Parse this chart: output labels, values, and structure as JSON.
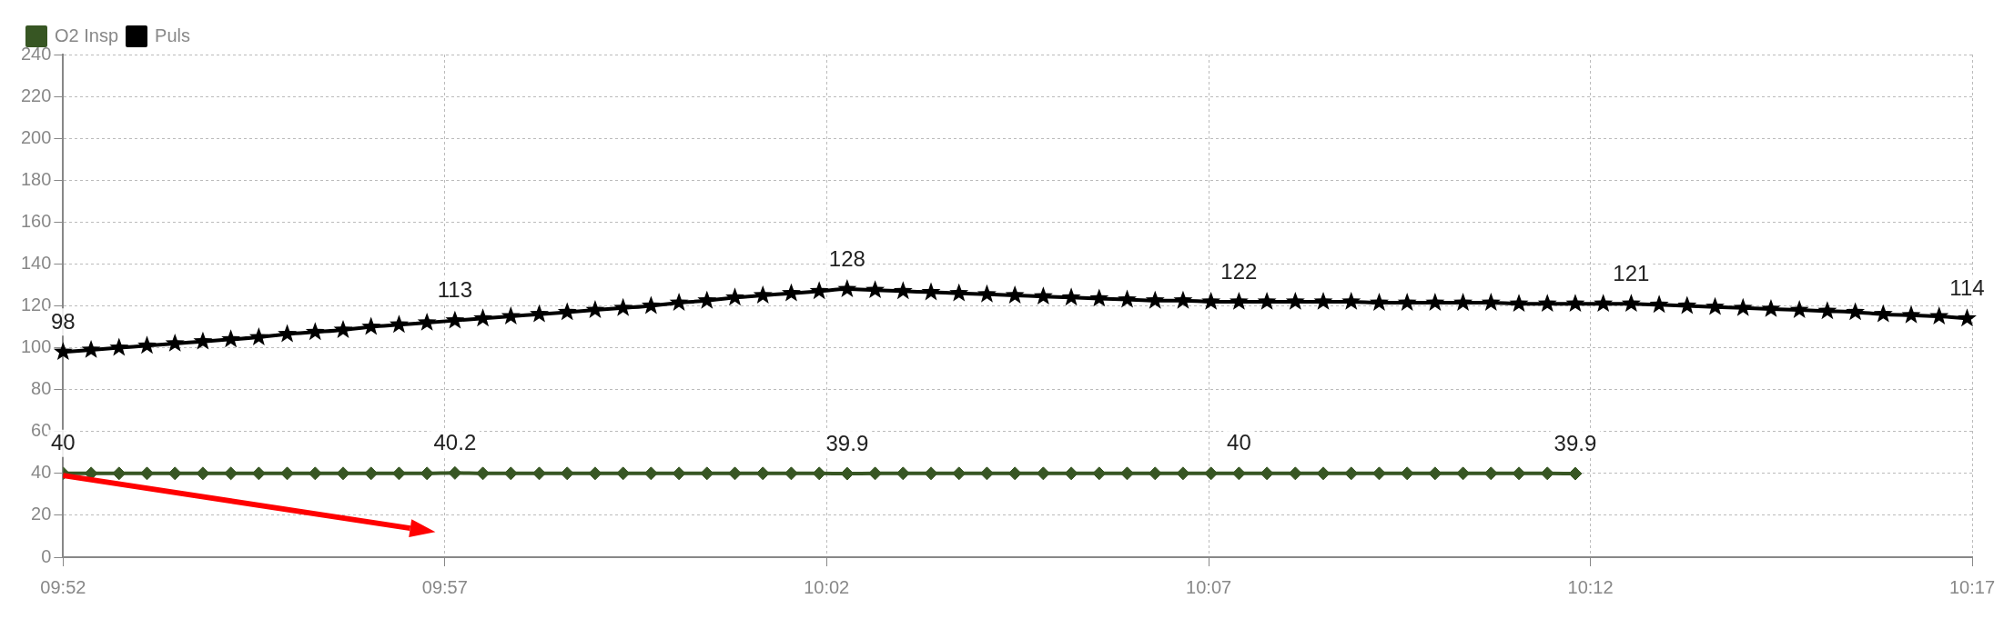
{
  "chart_data": {
    "type": "line",
    "xlim": [
      9.8667,
      10.2833
    ],
    "xticks": [
      {
        "value": 9.8667,
        "label": "09:52"
      },
      {
        "value": 9.95,
        "label": "09:57"
      },
      {
        "value": 10.0333,
        "label": "10:02"
      },
      {
        "value": 10.1167,
        "label": "10:07"
      },
      {
        "value": 10.2,
        "label": "10:12"
      },
      {
        "value": 10.2833,
        "label": "10:17"
      }
    ],
    "ylim": [
      0,
      240
    ],
    "yticks": [
      0,
      20,
      40,
      60,
      80,
      100,
      120,
      140,
      160,
      180,
      200,
      220,
      240
    ],
    "grid": true,
    "legend": "top left",
    "line_style": "solid",
    "series": [
      {
        "name": "O2 Insp",
        "color": "#375623",
        "marker": "diamond",
        "x": [
          9.8667,
          9.8728,
          9.8789,
          9.885,
          9.8911,
          9.8972,
          9.9033,
          9.9094,
          9.9156,
          9.9217,
          9.9278,
          9.9339,
          9.94,
          9.9461,
          9.9522,
          9.9583,
          9.9644,
          9.9706,
          9.9767,
          9.9828,
          9.9889,
          9.995,
          10.0011,
          10.0072,
          10.0133,
          10.0194,
          10.0256,
          10.0317,
          10.0378,
          10.0439,
          10.05,
          10.0561,
          10.0622,
          10.0683,
          10.0744,
          10.0806,
          10.0867,
          10.0928,
          10.0989,
          10.105,
          10.1111,
          10.1172,
          10.1233,
          10.1294,
          10.1356,
          10.1417,
          10.1478,
          10.1539,
          10.16,
          10.1661,
          10.1722,
          10.1783,
          10.1844,
          10.1906,
          10.1967
        ],
        "values": [
          40,
          40,
          40,
          40,
          40,
          40,
          40,
          40,
          40,
          40,
          40,
          40,
          40,
          40,
          40.2,
          40,
          40,
          40,
          40,
          40,
          40,
          40,
          40,
          40,
          40,
          40,
          40,
          40,
          39.9,
          40,
          40,
          40,
          40,
          40,
          40,
          40,
          40,
          40,
          40,
          40,
          40,
          40,
          40,
          40,
          40,
          40,
          40,
          40,
          40,
          40,
          40,
          40,
          40,
          40,
          39.9
        ],
        "value_labels": [
          "40",
          null,
          null,
          null,
          null,
          null,
          null,
          null,
          null,
          null,
          null,
          null,
          null,
          null,
          "40.2",
          null,
          null,
          null,
          null,
          null,
          null,
          null,
          null,
          null,
          null,
          null,
          null,
          null,
          "39.9",
          null,
          null,
          null,
          null,
          null,
          null,
          null,
          null,
          null,
          null,
          null,
          null,
          null,
          "40",
          null,
          null,
          null,
          null,
          null,
          null,
          null,
          null,
          null,
          null,
          null,
          "39.9"
        ]
      },
      {
        "name": "Puls",
        "color": "#000000",
        "marker": "star",
        "x": [
          9.8667,
          9.8728,
          9.8789,
          9.885,
          9.8911,
          9.8972,
          9.9033,
          9.9094,
          9.9156,
          9.9217,
          9.9278,
          9.9339,
          9.94,
          9.9461,
          9.9522,
          9.9583,
          9.9644,
          9.9706,
          9.9767,
          9.9828,
          9.9889,
          9.995,
          10.0011,
          10.0072,
          10.0133,
          10.0194,
          10.0256,
          10.0317,
          10.0378,
          10.0439,
          10.05,
          10.0561,
          10.0622,
          10.0683,
          10.0744,
          10.0806,
          10.0867,
          10.0928,
          10.0989,
          10.105,
          10.1111,
          10.1172,
          10.1233,
          10.1294,
          10.1356,
          10.1417,
          10.1478,
          10.1539,
          10.16,
          10.1661,
          10.1722,
          10.1783,
          10.1844,
          10.1906,
          10.1967,
          10.2028,
          10.2089,
          10.215,
          10.2211,
          10.2272,
          10.2333,
          10.2394,
          10.2456,
          10.2517,
          10.2578,
          10.2639,
          10.27,
          10.2761,
          10.2822
        ],
        "values": [
          98,
          99,
          100,
          101,
          102,
          103,
          104,
          105,
          106.5,
          107.5,
          108.5,
          110,
          111,
          112,
          113,
          114,
          115,
          116,
          117,
          118,
          119,
          120,
          121.5,
          122.5,
          124,
          125,
          126,
          127,
          128,
          127.5,
          127,
          126.5,
          126,
          125.5,
          125,
          124.5,
          124,
          123.5,
          123,
          122.5,
          122.5,
          122,
          122,
          122,
          122,
          122,
          122,
          121.5,
          121.5,
          121.5,
          121.5,
          121.5,
          121,
          121,
          121,
          121,
          121,
          120.5,
          120,
          119.5,
          119,
          118.5,
          118,
          117.5,
          117,
          116,
          115.5,
          115,
          114
        ],
        "value_labels": [
          "98",
          null,
          null,
          null,
          null,
          null,
          null,
          null,
          null,
          null,
          null,
          null,
          null,
          null,
          "113",
          null,
          null,
          null,
          null,
          null,
          null,
          null,
          null,
          null,
          null,
          null,
          null,
          null,
          "128",
          null,
          null,
          null,
          null,
          null,
          null,
          null,
          null,
          null,
          null,
          null,
          null,
          null,
          "122",
          null,
          null,
          null,
          null,
          null,
          null,
          null,
          null,
          null,
          null,
          null,
          null,
          null,
          "121",
          null,
          null,
          null,
          null,
          null,
          null,
          null,
          null,
          null,
          null,
          null,
          "114"
        ]
      }
    ]
  }
}
